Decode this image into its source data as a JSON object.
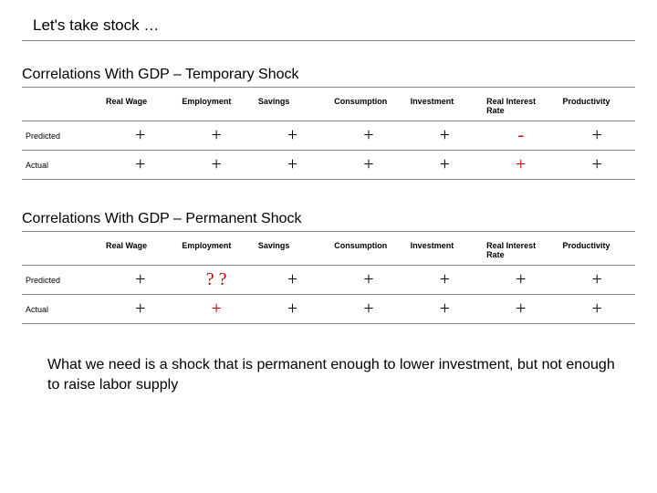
{
  "title": "Let's take stock …",
  "table1": {
    "subtitle": "Correlations With GDP – Temporary Shock",
    "columns": [
      "",
      "Real Wage",
      "Employment",
      "Savings",
      "Consumption",
      "Investment",
      "Real Interest Rate",
      "Productivity"
    ],
    "headerHighlight": [
      false,
      false,
      false,
      false,
      false,
      false,
      false,
      false
    ],
    "rows": [
      {
        "label": "Predicted",
        "values": [
          "+",
          "+",
          "+",
          "+",
          "+",
          "-",
          "+"
        ],
        "highlight": [
          false,
          false,
          false,
          false,
          false,
          true,
          false
        ]
      },
      {
        "label": "Actual",
        "values": [
          "+",
          "+",
          "+",
          "+",
          "+",
          "+",
          "+"
        ],
        "highlight": [
          false,
          false,
          false,
          false,
          false,
          true,
          false
        ]
      }
    ]
  },
  "table2": {
    "subtitle": "Correlations With GDP – Permanent Shock",
    "columns": [
      "",
      "Real Wage",
      "Employment",
      "Savings",
      "Consumption",
      "Investment",
      "Real Interest Rate",
      "Productivity"
    ],
    "headerHighlight": [
      false,
      false,
      true,
      false,
      false,
      false,
      false,
      false
    ],
    "rows": [
      {
        "label": "Predicted",
        "values": [
          "+",
          "? ?",
          "+",
          "+",
          "+",
          "+",
          "+"
        ],
        "highlight": [
          false,
          true,
          false,
          false,
          false,
          false,
          false
        ]
      },
      {
        "label": "Actual",
        "values": [
          "+",
          "+",
          "+",
          "+",
          "+",
          "+",
          "+"
        ],
        "highlight": [
          false,
          true,
          false,
          false,
          false,
          false,
          false
        ]
      }
    ]
  },
  "conclusion": "What we need is a shock that is permanent enough to lower investment, but not enough to raise labor supply"
}
